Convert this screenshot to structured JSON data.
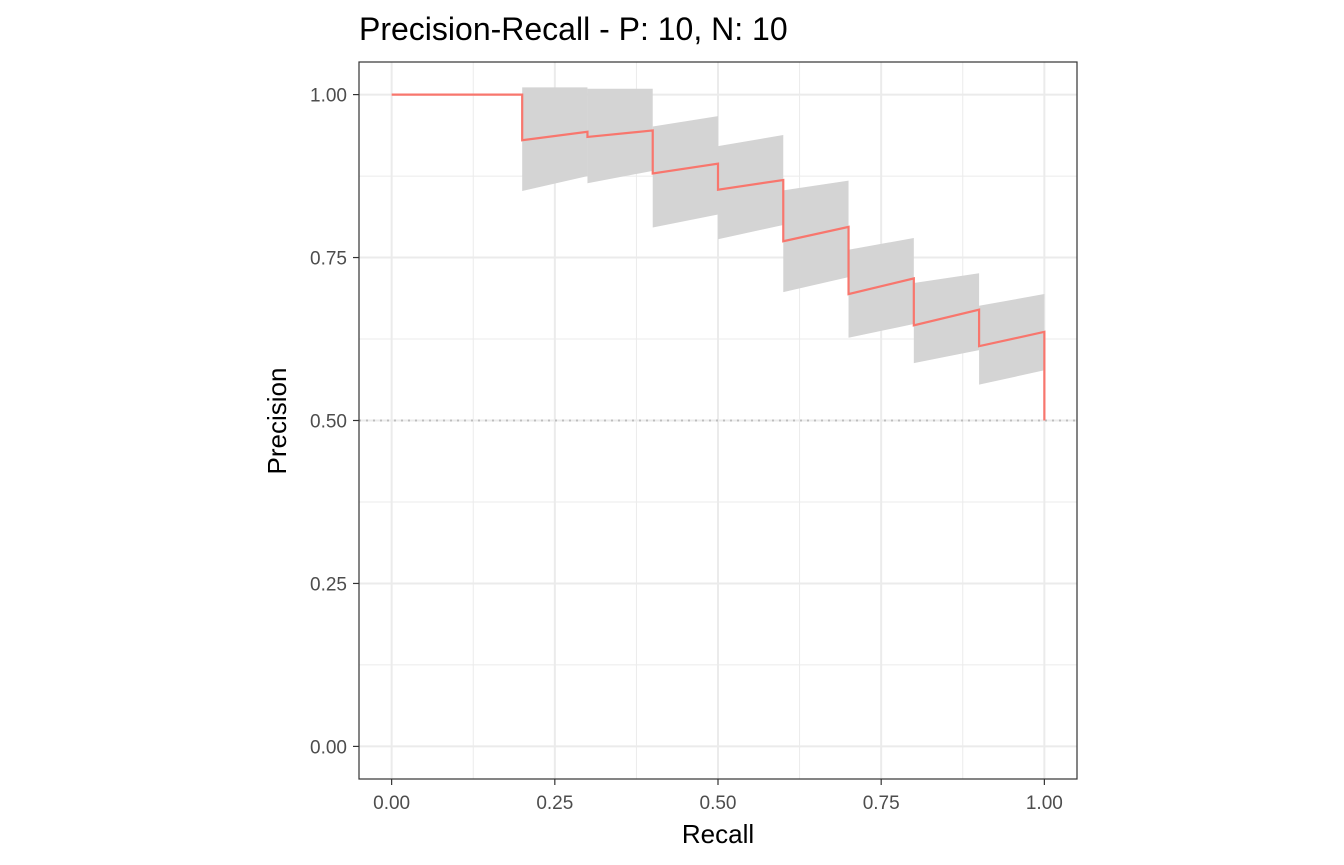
{
  "chart_data": {
    "type": "line",
    "title": "Precision-Recall - P: 10, N: 10",
    "xlabel": "Recall",
    "ylabel": "Precision",
    "xlim": [
      -0.05,
      1.05
    ],
    "ylim": [
      -0.05,
      1.05
    ],
    "x_ticks": [
      "0.00",
      "0.25",
      "0.50",
      "0.75",
      "1.00"
    ],
    "y_ticks": [
      "0.00",
      "0.25",
      "0.50",
      "0.75",
      "1.00"
    ],
    "x_tick_values": [
      0,
      0.25,
      0.5,
      0.75,
      1.0
    ],
    "y_tick_values": [
      0,
      0.25,
      0.5,
      0.75,
      1.0
    ],
    "grid": true,
    "baseline": {
      "y": 0.5,
      "style": "dotted",
      "color": "#bdbdbd"
    },
    "colors": {
      "line": "#f8766d",
      "band": "#d4d4d4",
      "grid": "#ebebeb",
      "panel_border": "#333333",
      "tick_label": "#4d4d4d"
    },
    "series": [
      {
        "points": [
          [
            0.0,
            1.0
          ],
          [
            0.2,
            1.0
          ],
          [
            0.2,
            0.93
          ],
          [
            0.3,
            0.943
          ],
          [
            0.3,
            0.935
          ],
          [
            0.4,
            0.945
          ],
          [
            0.4,
            0.879
          ],
          [
            0.5,
            0.894
          ],
          [
            0.5,
            0.854
          ],
          [
            0.6,
            0.869
          ],
          [
            0.6,
            0.775
          ],
          [
            0.7,
            0.797
          ],
          [
            0.7,
            0.694
          ],
          [
            0.8,
            0.718
          ],
          [
            0.8,
            0.646
          ],
          [
            0.9,
            0.67
          ],
          [
            0.9,
            0.614
          ],
          [
            1.0,
            0.636
          ],
          [
            1.0,
            0.5
          ]
        ],
        "band": [
          {
            "x0": 0.2,
            "x1": 0.3,
            "upper": [
              1.011,
              1.011
            ],
            "lower": [
              0.852,
              0.875
            ]
          },
          {
            "x0": 0.3,
            "x1": 0.4,
            "upper": [
              1.009,
              1.009
            ],
            "lower": [
              0.864,
              0.883
            ]
          },
          {
            "x0": 0.4,
            "x1": 0.5,
            "upper": [
              0.951,
              0.967
            ],
            "lower": [
              0.796,
              0.816
            ]
          },
          {
            "x0": 0.5,
            "x1": 0.6,
            "upper": [
              0.921,
              0.938
            ],
            "lower": [
              0.778,
              0.8
            ]
          },
          {
            "x0": 0.6,
            "x1": 0.7,
            "upper": [
              0.853,
              0.868
            ],
            "lower": [
              0.697,
              0.72
            ]
          },
          {
            "x0": 0.7,
            "x1": 0.8,
            "upper": [
              0.762,
              0.78
            ],
            "lower": [
              0.627,
              0.648
            ]
          },
          {
            "x0": 0.8,
            "x1": 0.9,
            "upper": [
              0.711,
              0.726
            ],
            "lower": [
              0.588,
              0.608
            ]
          },
          {
            "x0": 0.9,
            "x1": 1.0,
            "upper": [
              0.676,
              0.694
            ],
            "lower": [
              0.555,
              0.577
            ]
          }
        ]
      }
    ]
  }
}
